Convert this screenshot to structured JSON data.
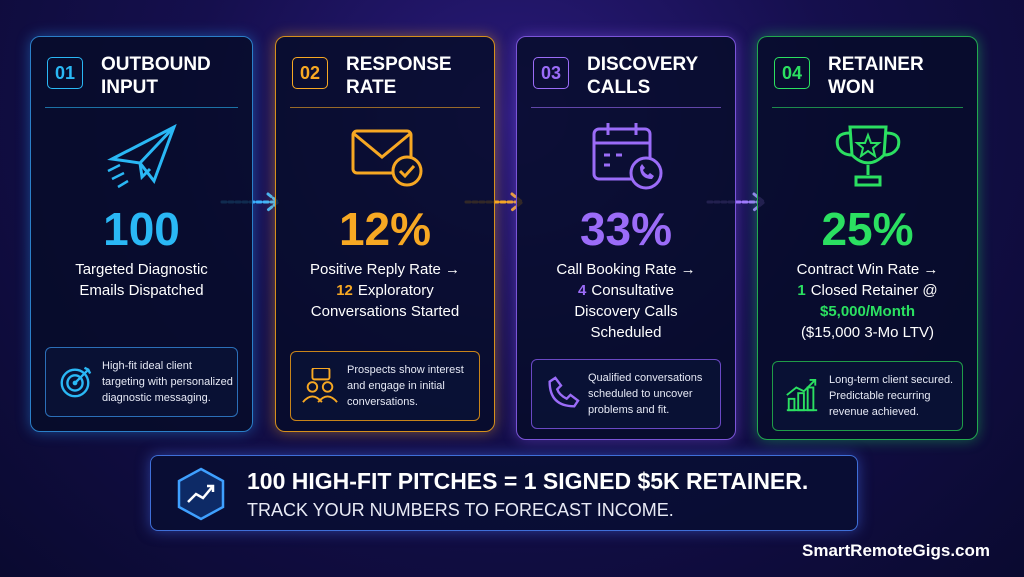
{
  "cards": [
    {
      "number": "01",
      "title_lines": [
        "OUTBOUND",
        "INPUT"
      ],
      "metric": "100",
      "caption": [
        "Targeted Diagnostic",
        "Emails Dispatched"
      ],
      "note": [
        "High-fit ideal client",
        "targeting with personalized",
        "diagnostic messaging."
      ]
    },
    {
      "number": "02",
      "title_lines": [
        "RESPONSE",
        "RATE"
      ],
      "metric": "12%",
      "caption": [
        "Positive Reply Rate →"
      ],
      "detail": {
        "highlight": "12",
        "lines": [
          "Exploratory",
          "Conversations Started"
        ]
      },
      "note": [
        "Prospects show interest",
        "and engage in initial",
        "conversations."
      ]
    },
    {
      "number": "03",
      "title_lines": [
        "DISCOVERY",
        "CALLS"
      ],
      "metric": "33%",
      "caption": [
        "Call Booking Rate →"
      ],
      "detail": {
        "highlight": "4",
        "lines": [
          "Consultative",
          "Discovery Calls",
          "Scheduled"
        ]
      },
      "note": [
        "Qualified conversations",
        "scheduled to uncover",
        "problems and fit."
      ]
    },
    {
      "number": "04",
      "title_lines": [
        "RETAINER",
        "WON"
      ],
      "metric": "25%",
      "caption": [
        "Contract Win Rate →"
      ],
      "detail": {
        "highlight": "1",
        "lines": [
          "Closed Retainer @"
        ],
        "emphasis": "$5,000/Month",
        "footnote": "($15,000 3-Mo LTV)"
      },
      "note": [
        "Long-term client secured.",
        "Predictable recurring",
        "revenue achieved."
      ]
    }
  ],
  "banner": {
    "headline": "100 HIGH-FIT PITCHES = 1 SIGNED $5K RETAINER.",
    "subline": "TRACK YOUR NUMBERS TO FORECAST INCOME."
  },
  "footer": "SmartRemoteGigs.com"
}
